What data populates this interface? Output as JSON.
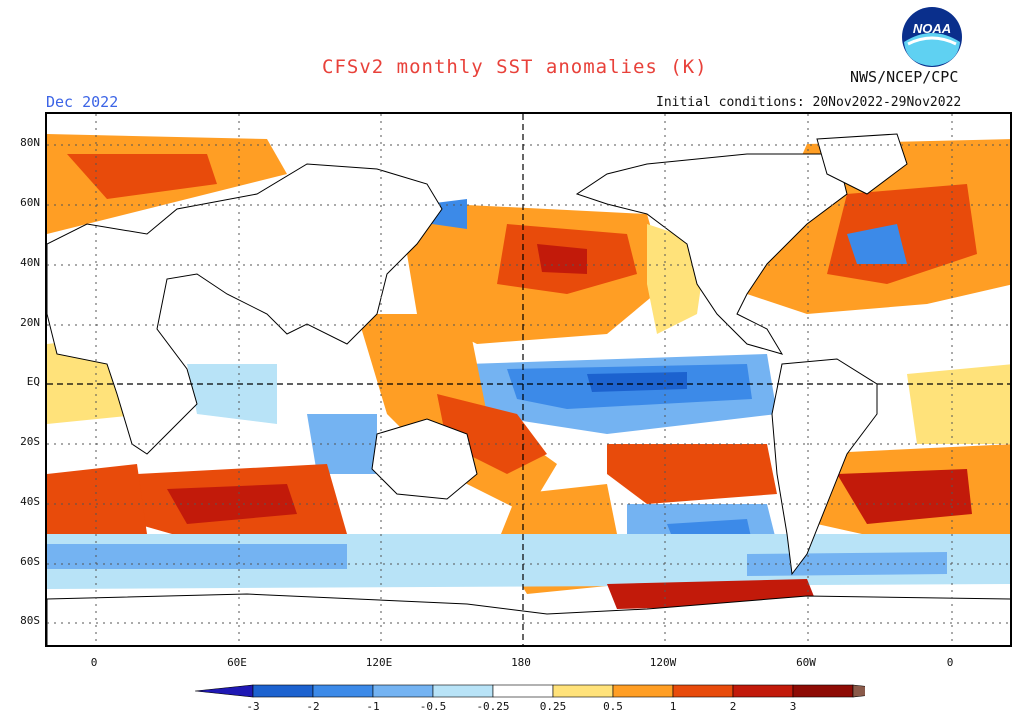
{
  "header": {
    "title": "CFSv2 monthly SST anomalies (K)",
    "agency": "NWS/NCEP/CPC",
    "month": "Dec 2022",
    "initial_conditions": "Initial conditions: 20Nov2022-29Nov2022",
    "logo_text": "NOAA"
  },
  "map": {
    "lat_labels": [
      "80N",
      "60N",
      "40N",
      "20N",
      "EQ",
      "20S",
      "40S",
      "60S",
      "80S"
    ],
    "lon_labels": [
      "0",
      "60E",
      "120E",
      "180",
      "120W",
      "60W",
      "0"
    ]
  },
  "colorbar": {
    "levels": [
      "-3",
      "-2",
      "-1",
      "-0.5",
      "-0.25",
      "0.25",
      "0.5",
      "1",
      "2",
      "3"
    ],
    "colors": [
      "#1f18b4",
      "#1c62cf",
      "#3c8ae8",
      "#74b3f2",
      "#b8e3f7",
      "#ffffff",
      "#ffe27a",
      "#ff9e24",
      "#e84b0b",
      "#c21a0a",
      "#8e0b05",
      "#8a5a4a"
    ]
  }
}
